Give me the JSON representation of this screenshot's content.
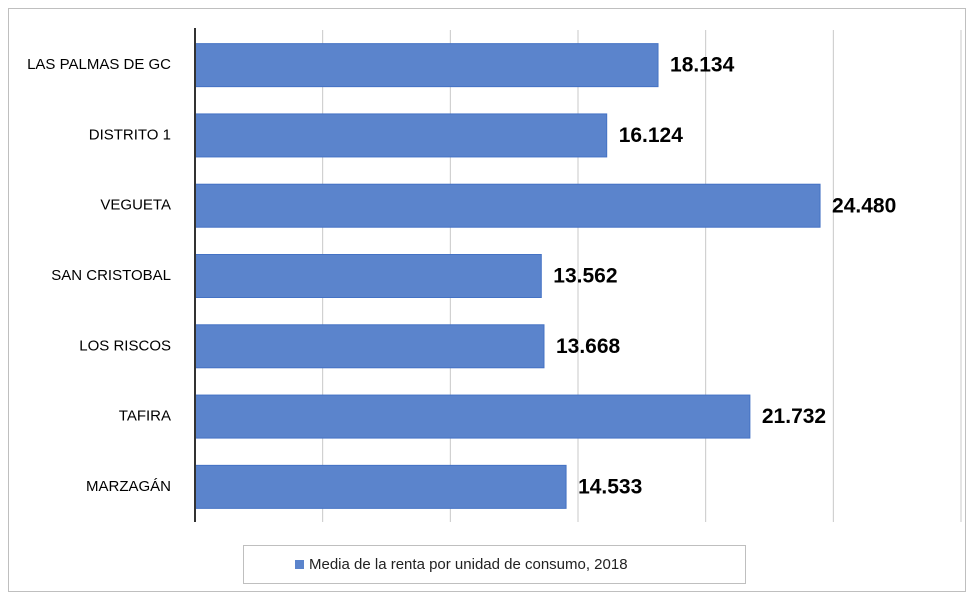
{
  "chart_data": {
    "type": "bar",
    "orientation": "horizontal",
    "categories": [
      "LAS PALMAS DE GC",
      "DISTRITO 1",
      "VEGUETA",
      "SAN CRISTOBAL",
      "LOS RISCOS",
      "TAFIRA",
      "MARZAGÁN"
    ],
    "series": [
      {
        "name": "Media de la renta por unidad de consumo, 2018",
        "color": "#5b84cc",
        "values": [
          18134,
          16124,
          24480,
          13562,
          13668,
          21732,
          14533
        ],
        "value_labels": [
          "18.134",
          "16.124",
          "24.480",
          "13.562",
          "13.668",
          "21.732",
          "14.533"
        ]
      }
    ],
    "xlim": [
      0,
      30000
    ],
    "xticks": [
      0,
      5000,
      10000,
      15000,
      20000,
      25000,
      30000
    ],
    "grid": true,
    "legend": "bottom"
  }
}
